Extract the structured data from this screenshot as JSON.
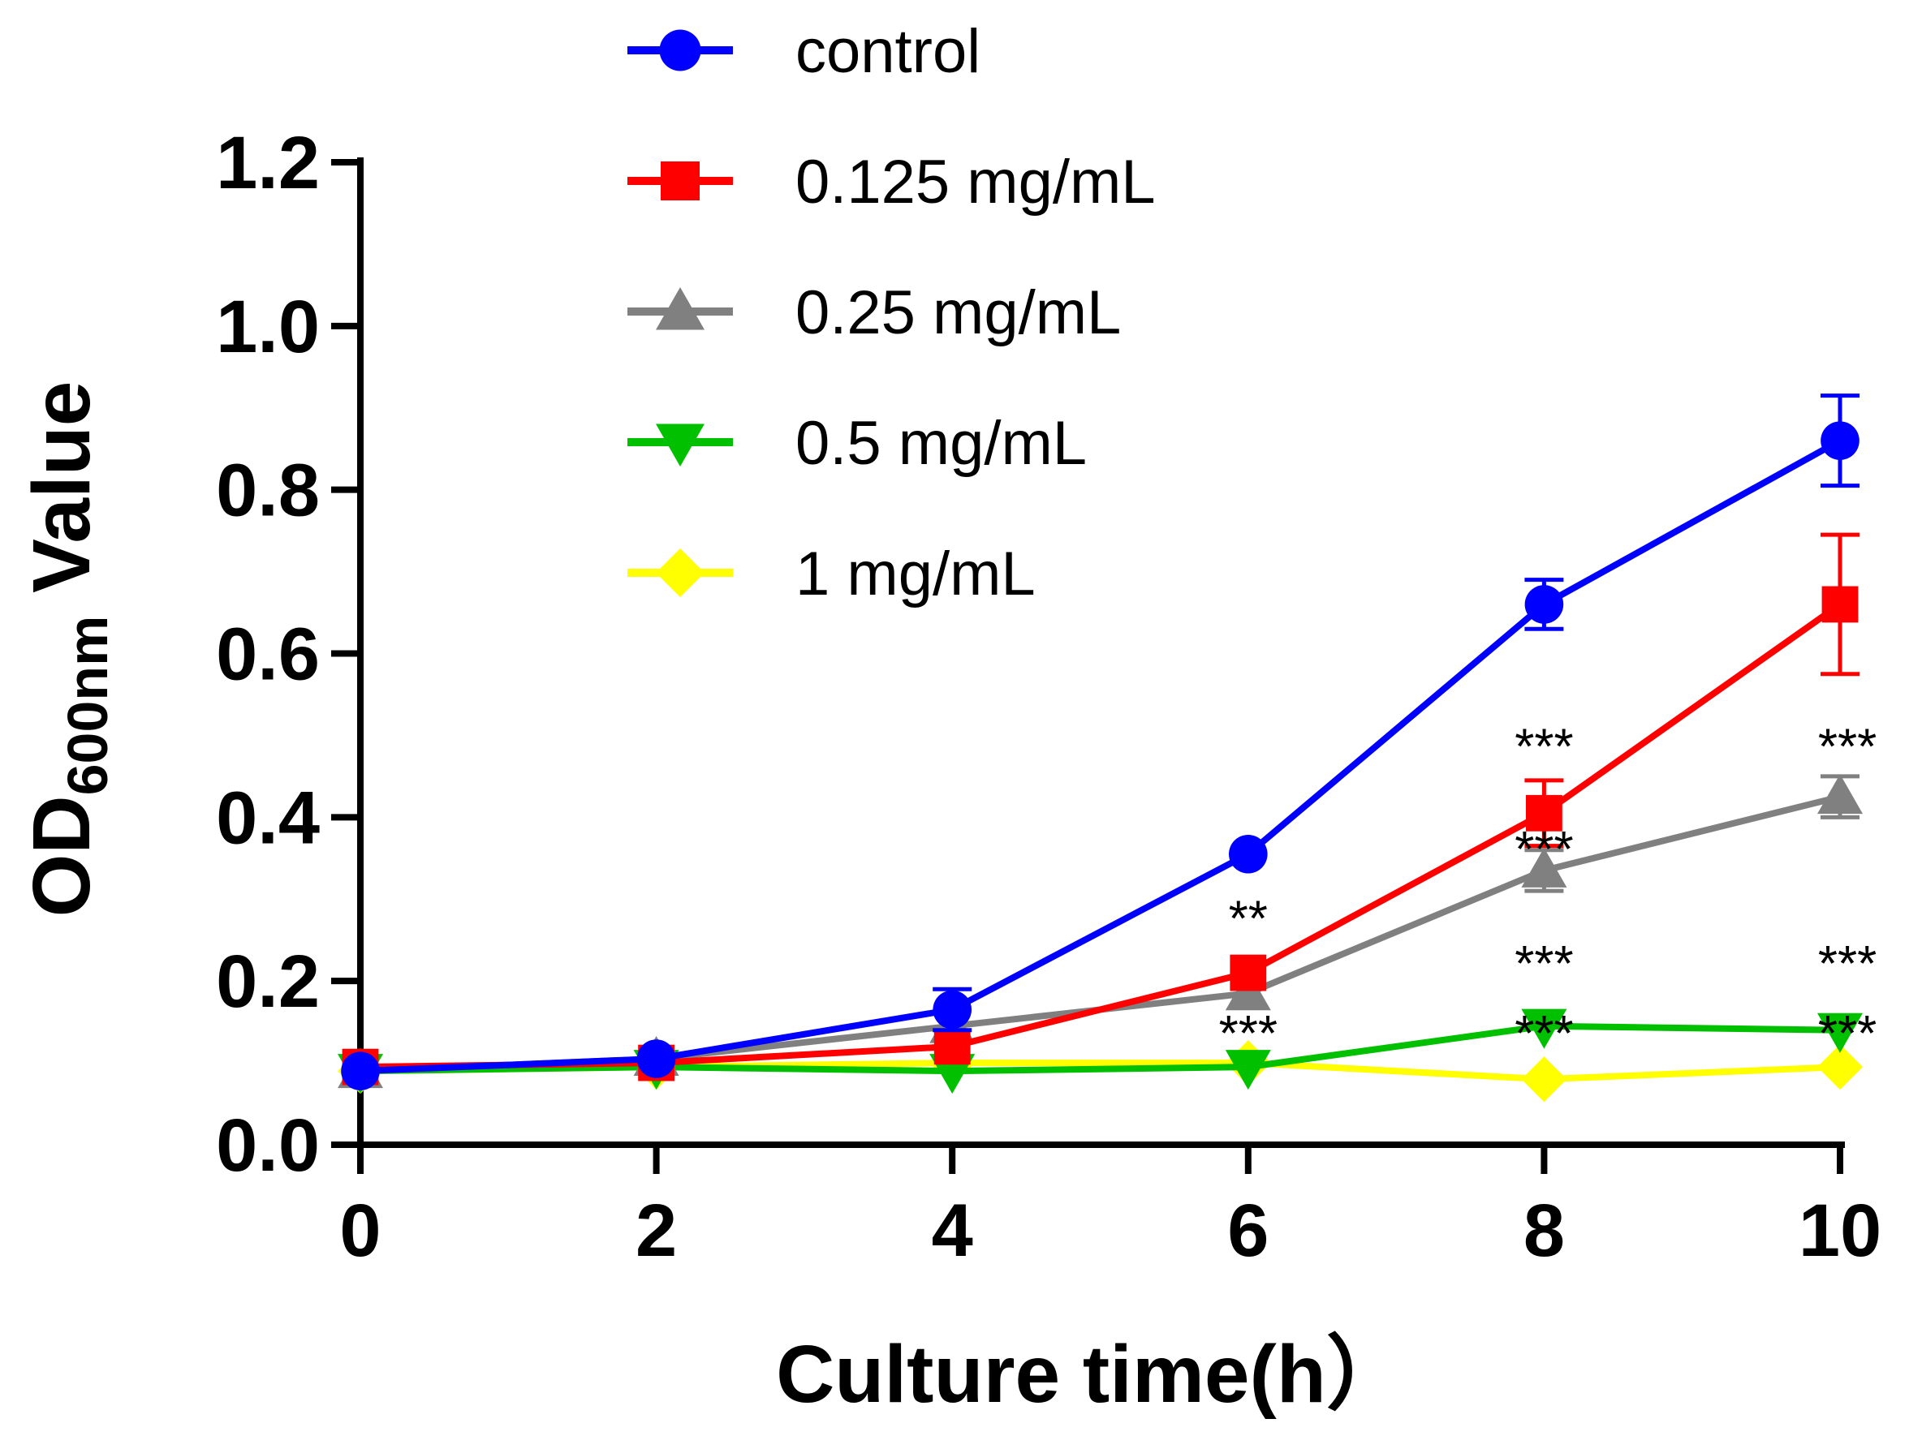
{
  "chart_data": {
    "type": "line",
    "title": "",
    "xlabel": "Culture time(h）",
    "ylabel": {
      "main": "OD",
      "sub": "600nm",
      "suffix": " Value"
    },
    "xlim": [
      0,
      10
    ],
    "ylim": [
      0,
      1.2
    ],
    "x_ticks": [
      0,
      2,
      4,
      6,
      8,
      10
    ],
    "x_tick_labels": [
      "0",
      "2",
      "4",
      "6",
      "8",
      "10"
    ],
    "y_ticks": [
      0,
      0.2,
      0.4,
      0.6,
      0.8,
      1.0,
      1.2
    ],
    "y_tick_labels": [
      "0.0",
      "0.2",
      "0.4",
      "0.6",
      "0.8",
      "1.0",
      "1.2"
    ],
    "grid": false,
    "legend_position": "top-center",
    "x": [
      0,
      2,
      4,
      6,
      8,
      10
    ],
    "series": [
      {
        "name": "control",
        "color": "#0000ff",
        "marker": "circle",
        "values": [
          0.09,
          0.105,
          0.165,
          0.355,
          0.66,
          0.86
        ],
        "errors": [
          0.005,
          0.005,
          0.025,
          0.01,
          0.03,
          0.055
        ]
      },
      {
        "name": "0.125 mg/mL",
        "color": "#ff0000",
        "marker": "square",
        "values": [
          0.095,
          0.1,
          0.12,
          0.21,
          0.405,
          0.66
        ],
        "errors": [
          0.005,
          0.005,
          0.005,
          0.01,
          0.04,
          0.085
        ]
      },
      {
        "name": "0.25 mg/mL",
        "color": "#808080",
        "marker": "triangle-up",
        "values": [
          0.09,
          0.105,
          0.145,
          0.185,
          0.335,
          0.425
        ],
        "errors": [
          0.005,
          0.005,
          0.005,
          0.01,
          0.025,
          0.025
        ]
      },
      {
        "name": "0.5 mg/mL",
        "color": "#00c000",
        "marker": "triangle-down",
        "values": [
          0.09,
          0.095,
          0.09,
          0.095,
          0.145,
          0.14
        ],
        "errors": [
          0,
          0,
          0,
          0,
          0,
          0
        ]
      },
      {
        "name": "1 mg/mL",
        "color": "#ffff00",
        "marker": "diamond",
        "values": [
          0.09,
          0.095,
          0.1,
          0.1,
          0.08,
          0.095
        ],
        "errors": [
          0,
          0,
          0,
          0,
          0,
          0
        ]
      }
    ],
    "annotations": [
      {
        "text": "**",
        "x": 6,
        "y": 0.255
      },
      {
        "text": "***",
        "x": 6,
        "y": 0.115
      },
      {
        "text": "***",
        "x": 8,
        "y": 0.465
      },
      {
        "text": "***",
        "x": 8,
        "y": 0.34
      },
      {
        "text": "***",
        "x": 8,
        "y": 0.2
      },
      {
        "text": "***",
        "x": 8,
        "y": 0.115
      },
      {
        "text": "***",
        "x": 10.05,
        "y": 0.465
      },
      {
        "text": "***",
        "x": 10.05,
        "y": 0.2
      },
      {
        "text": "***",
        "x": 10.05,
        "y": 0.115
      }
    ]
  }
}
